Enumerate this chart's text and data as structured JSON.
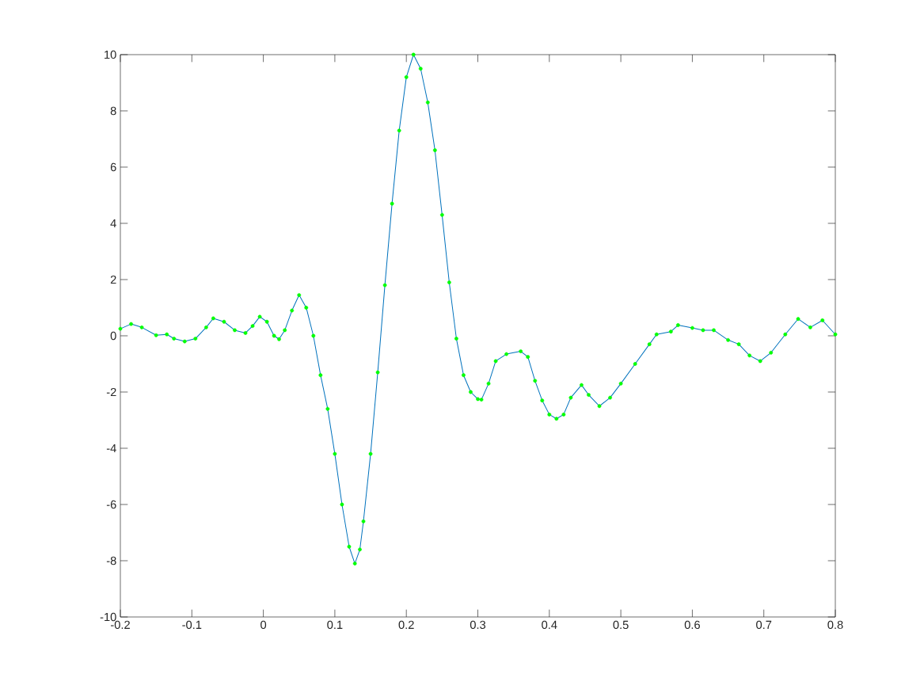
{
  "chart_data": {
    "type": "line",
    "x": [
      -0.2,
      -0.185,
      -0.17,
      -0.15,
      -0.135,
      -0.125,
      -0.11,
      -0.095,
      -0.08,
      -0.07,
      -0.055,
      -0.04,
      -0.025,
      -0.015,
      -0.005,
      0.005,
      0.015,
      0.022,
      0.03,
      0.04,
      0.05,
      0.06,
      0.07,
      0.08,
      0.09,
      0.1,
      0.11,
      0.12,
      0.128,
      0.135,
      0.14,
      0.15,
      0.16,
      0.17,
      0.18,
      0.19,
      0.2,
      0.21,
      0.22,
      0.23,
      0.24,
      0.25,
      0.26,
      0.27,
      0.28,
      0.29,
      0.3,
      0.305,
      0.315,
      0.325,
      0.34,
      0.36,
      0.37,
      0.38,
      0.39,
      0.4,
      0.41,
      0.42,
      0.43,
      0.445,
      0.455,
      0.47,
      0.485,
      0.5,
      0.52,
      0.54,
      0.55,
      0.57,
      0.58,
      0.6,
      0.615,
      0.63,
      0.65,
      0.665,
      0.68,
      0.695,
      0.71,
      0.73,
      0.748,
      0.765,
      0.782,
      0.8
    ],
    "series": [
      {
        "color": "#0072bd",
        "values": [
          0.25,
          0.42,
          0.3,
          0.02,
          0.05,
          -0.1,
          -0.2,
          -0.1,
          0.3,
          0.62,
          0.5,
          0.2,
          0.1,
          0.35,
          0.68,
          0.5,
          0.0,
          -0.12,
          0.2,
          0.9,
          1.45,
          1.0,
          0.0,
          -1.4,
          -2.6,
          -4.2,
          -6.0,
          -7.5,
          -8.1,
          -7.6,
          -6.6,
          -4.2,
          -1.3,
          1.8,
          4.7,
          7.3,
          9.2,
          10.0,
          9.5,
          8.3,
          6.6,
          4.3,
          1.9,
          -0.1,
          -1.4,
          -2.0,
          -2.25,
          -2.27,
          -1.7,
          -0.9,
          -0.65,
          -0.55,
          -0.75,
          -1.6,
          -2.3,
          -2.8,
          -2.95,
          -2.8,
          -2.2,
          -1.75,
          -2.1,
          -2.5,
          -2.2,
          -1.7,
          -1.0,
          -0.3,
          0.05,
          0.15,
          0.38,
          0.28,
          0.2,
          0.2,
          -0.15,
          -0.3,
          -0.7,
          -0.9,
          -0.6,
          0.05,
          0.6,
          0.3,
          0.55,
          0.05
        ]
      },
      {
        "type": "scatter",
        "color": "#00ff00",
        "marker": "circle",
        "values": [
          0.25,
          0.42,
          0.3,
          0.02,
          0.05,
          -0.1,
          -0.2,
          -0.1,
          0.3,
          0.62,
          0.5,
          0.2,
          0.1,
          0.35,
          0.68,
          0.5,
          0.0,
          -0.12,
          0.2,
          0.9,
          1.45,
          1.0,
          0.0,
          -1.4,
          -2.6,
          -4.2,
          -6.0,
          -7.5,
          -8.1,
          -7.6,
          -6.6,
          -4.2,
          -1.3,
          1.8,
          4.7,
          7.3,
          9.2,
          10.0,
          9.5,
          8.3,
          6.6,
          4.3,
          1.9,
          -0.1,
          -1.4,
          -2.0,
          -2.25,
          -2.27,
          -1.7,
          -0.9,
          -0.65,
          -0.55,
          -0.75,
          -1.6,
          -2.3,
          -2.8,
          -2.95,
          -2.8,
          -2.2,
          -1.75,
          -2.1,
          -2.5,
          -2.2,
          -1.7,
          -1.0,
          -0.3,
          0.05,
          0.15,
          0.38,
          0.28,
          0.2,
          0.2,
          -0.15,
          -0.3,
          -0.7,
          -0.9,
          -0.6,
          0.05,
          0.6,
          0.3,
          0.55,
          0.05
        ]
      }
    ],
    "xlim": [
      -0.2,
      0.8
    ],
    "ylim": [
      -10,
      10
    ],
    "xticks": [
      -0.2,
      -0.1,
      0,
      0.1,
      0.2,
      0.3,
      0.4,
      0.5,
      0.6,
      0.7,
      0.8
    ],
    "yticks": [
      -10,
      -8,
      -6,
      -4,
      -2,
      0,
      2,
      4,
      6,
      8,
      10
    ],
    "grid": false
  }
}
